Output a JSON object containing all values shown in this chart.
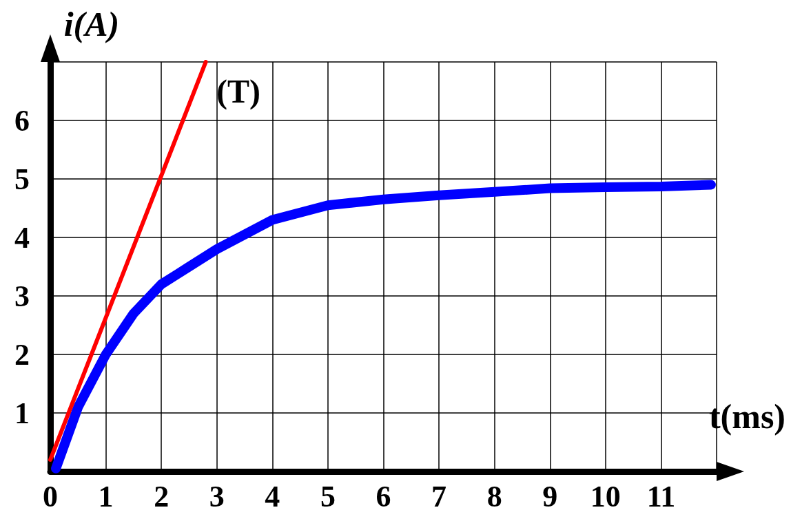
{
  "chart_data": {
    "type": "line",
    "xlabel": "t(ms)",
    "ylabel": "i(A)",
    "xlim": [
      0,
      12
    ],
    "ylim": [
      0,
      7
    ],
    "xticks": [
      0,
      1,
      2,
      3,
      4,
      5,
      6,
      7,
      8,
      9,
      10,
      11,
      {
        "value": 12,
        "label": null
      }
    ],
    "yticks": [
      {
        "value": 0,
        "label": null
      },
      1,
      2,
      3,
      4,
      5,
      6,
      {
        "value": 7,
        "label": null
      }
    ],
    "grid": true,
    "marker": "none",
    "line_style": "solid",
    "annotations": [
      "(T)"
    ],
    "series": [
      {
        "color": "#0000ff",
        "x": [
          0.1,
          0.5,
          1,
          1.5,
          2,
          2.5,
          3,
          3.5,
          4,
          5,
          6,
          7,
          8,
          9,
          10,
          11,
          11.9
        ],
        "values": [
          0.05,
          1.1,
          2.0,
          2.7,
          3.2,
          3.5,
          3.8,
          4.05,
          4.3,
          4.55,
          4.65,
          4.72,
          4.78,
          4.84,
          4.86,
          4.87,
          4.9
        ]
      },
      {
        "color": "#ff0000",
        "x": [
          0,
          2.8
        ],
        "values": [
          0.2,
          7
        ]
      }
    ]
  }
}
